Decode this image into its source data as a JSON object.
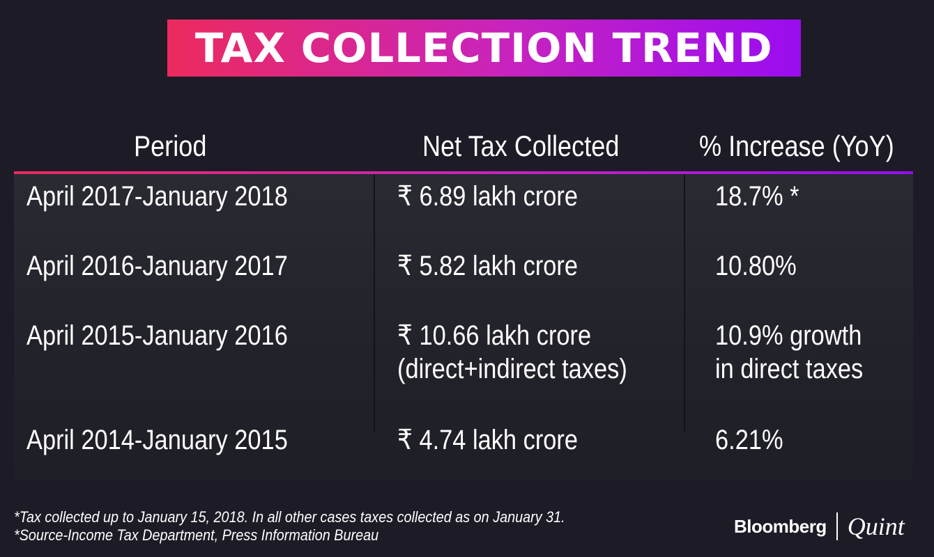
{
  "title": "TAX COLLECTION TREND",
  "chart_data": {
    "type": "table",
    "columns": [
      "Period",
      "Net Tax Collected",
      "% Increase (YoY)"
    ],
    "rows": [
      {
        "period": "April 2017-January 2018",
        "net": [
          "₹ 6.89 lakh crore"
        ],
        "increase": [
          "18.7% *"
        ]
      },
      {
        "period": "April 2016-January 2017",
        "net": [
          "₹ 5.82 lakh crore"
        ],
        "increase": [
          "10.80%"
        ]
      },
      {
        "period": "April 2015-January 2016",
        "net": [
          "₹ 10.66 lakh crore",
          "(direct+indirect taxes)"
        ],
        "increase": [
          "10.9% growth",
          "in direct taxes"
        ]
      },
      {
        "period": "April 2014-January 2015",
        "net": [
          "₹ 4.74 lakh crore"
        ],
        "increase": [
          "6.21%"
        ]
      }
    ]
  },
  "footnotes": [
    "*Tax collected up to January 15, 2018. In all other cases taxes collected as on January 31.",
    "*Source-Income Tax Department, Press Information Bureau"
  ],
  "brand": {
    "left": "Bloomberg",
    "right": "Quint"
  },
  "colors": {
    "background": "#1c1b26",
    "gradient_start": "#ec2a5f",
    "gradient_end": "#9a0cf0"
  }
}
